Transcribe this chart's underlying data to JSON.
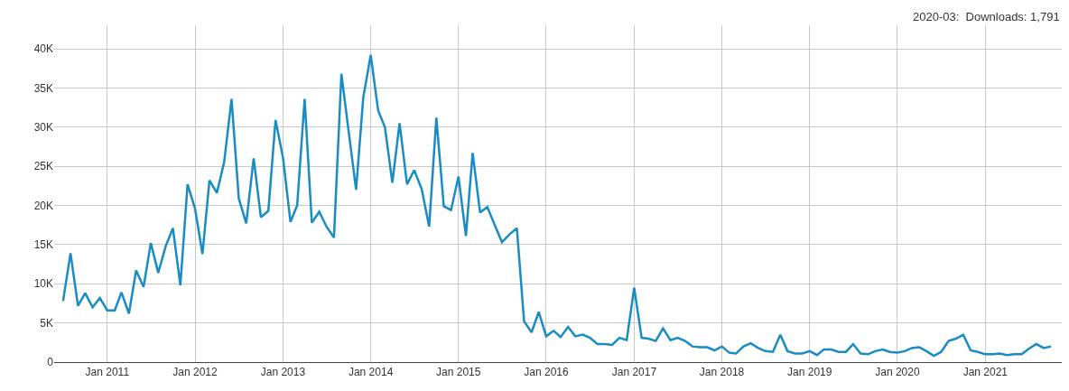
{
  "chart_data": {
    "type": "line",
    "x": [
      "2010-07",
      "2010-08",
      "2010-09",
      "2010-10",
      "2010-11",
      "2010-12",
      "2011-01",
      "2011-02",
      "2011-03",
      "2011-04",
      "2011-05",
      "2011-06",
      "2011-07",
      "2011-08",
      "2011-09",
      "2011-10",
      "2011-11",
      "2011-12",
      "2012-01",
      "2012-02",
      "2012-03",
      "2012-04",
      "2012-05",
      "2012-06",
      "2012-07",
      "2012-08",
      "2012-09",
      "2012-10",
      "2012-11",
      "2012-12",
      "2013-01",
      "2013-02",
      "2013-03",
      "2013-04",
      "2013-05",
      "2013-06",
      "2013-07",
      "2013-08",
      "2013-09",
      "2013-10",
      "2013-11",
      "2013-12",
      "2014-01",
      "2014-02",
      "2014-03",
      "2014-04",
      "2014-05",
      "2014-06",
      "2014-07",
      "2014-08",
      "2014-09",
      "2014-10",
      "2014-11",
      "2014-12",
      "2015-01",
      "2015-02",
      "2015-03",
      "2015-04",
      "2015-05",
      "2015-06",
      "2015-07",
      "2015-08",
      "2015-09",
      "2015-10",
      "2015-11",
      "2015-12",
      "2016-01",
      "2016-02",
      "2016-03",
      "2016-04",
      "2016-05",
      "2016-06",
      "2016-07",
      "2016-08",
      "2016-09",
      "2016-10",
      "2016-11",
      "2016-12",
      "2017-01",
      "2017-02",
      "2017-03",
      "2017-04",
      "2017-05",
      "2017-06",
      "2017-07",
      "2017-08",
      "2017-09",
      "2017-10",
      "2017-11",
      "2017-12",
      "2018-01",
      "2018-02",
      "2018-03",
      "2018-04",
      "2018-05",
      "2018-06",
      "2018-07",
      "2018-08",
      "2018-09",
      "2018-10",
      "2018-11",
      "2018-12",
      "2019-01",
      "2019-02",
      "2019-03",
      "2019-04",
      "2019-05",
      "2019-06",
      "2019-07",
      "2019-08",
      "2019-09",
      "2019-10",
      "2019-11",
      "2019-12",
      "2020-01",
      "2020-02",
      "2020-03",
      "2020-04",
      "2020-05",
      "2020-06",
      "2020-07",
      "2020-08",
      "2020-09",
      "2020-10",
      "2020-11",
      "2020-12",
      "2021-01",
      "2021-02",
      "2021-03",
      "2021-04",
      "2021-05",
      "2021-06",
      "2021-07",
      "2021-08",
      "2021-09",
      "2021-10"
    ],
    "series": [
      {
        "color": "#1a8cc4",
        "values": [
          7800,
          13900,
          7200,
          8800,
          7000,
          8200,
          6600,
          6600,
          8900,
          6200,
          11700,
          9600,
          15200,
          11400,
          14800,
          17100,
          9800,
          22700,
          19600,
          13800,
          23200,
          21600,
          25500,
          33600,
          20900,
          17700,
          26000,
          18500,
          19300,
          30900,
          26100,
          17900,
          20000,
          33600,
          17800,
          19200,
          17300,
          15900,
          36800,
          29500,
          22000,
          33800,
          39200,
          32100,
          30000,
          22900,
          30500,
          22700,
          24500,
          22100,
          17300,
          31200,
          19900,
          19400,
          23700,
          16100,
          26700,
          19100,
          19800,
          17500,
          15300,
          16300,
          17100,
          5200,
          3800,
          6400,
          3300,
          4000,
          3200,
          4500,
          3300,
          3500,
          3100,
          2300,
          2300,
          2200,
          3100,
          2800,
          9500,
          3100,
          3000,
          2700,
          4300,
          2800,
          3100,
          2700,
          2000,
          1900,
          1900,
          1500,
          2000,
          1200,
          1100,
          2000,
          2400,
          1800,
          1400,
          1300,
          3500,
          1400,
          1100,
          1100,
          1400,
          900,
          1600,
          1600,
          1300,
          1300,
          2300,
          1100,
          1000,
          1400,
          1600,
          1300,
          1200,
          1400,
          1800,
          1900,
          1400,
          800,
          1300,
          2700,
          3000,
          3500,
          1500,
          1300,
          1000,
          1000,
          1100,
          900,
          1000,
          1000,
          1700,
          2300,
          1800,
          2000
        ]
      }
    ],
    "xlim": [
      "2010-05-25",
      "2021-11-15"
    ],
    "xticks": [
      {
        "value": "2011-01-01",
        "label": "Jan 2011"
      },
      {
        "value": "2012-01-01",
        "label": "Jan 2012"
      },
      {
        "value": "2013-01-01",
        "label": "Jan 2013"
      },
      {
        "value": "2014-01-01",
        "label": "Jan 2014"
      },
      {
        "value": "2015-01-01",
        "label": "Jan 2015"
      },
      {
        "value": "2016-01-01",
        "label": "Jan 2016"
      },
      {
        "value": "2017-01-01",
        "label": "Jan 2017"
      },
      {
        "value": "2018-01-01",
        "label": "Jan 2018"
      },
      {
        "value": "2019-01-01",
        "label": "Jan 2019"
      },
      {
        "value": "2020-01-01",
        "label": "Jan 2020"
      },
      {
        "value": "2021-01-01",
        "label": "Jan 2021"
      }
    ],
    "ylim": [
      0,
      43000
    ],
    "yticks": [
      0,
      {
        "value": 5000,
        "label": "5K"
      },
      {
        "value": 10000,
        "label": "10K"
      },
      {
        "value": 15000,
        "label": "15K"
      },
      {
        "value": 20000,
        "label": "20K"
      },
      {
        "value": 25000,
        "label": "25K"
      },
      {
        "value": 30000,
        "label": "30K"
      },
      {
        "value": 35000,
        "label": "35K"
      },
      {
        "value": 40000,
        "label": "40K"
      }
    ],
    "grid": true,
    "annotations": [
      "2020-03:  Downloads: 1,791"
    ]
  }
}
